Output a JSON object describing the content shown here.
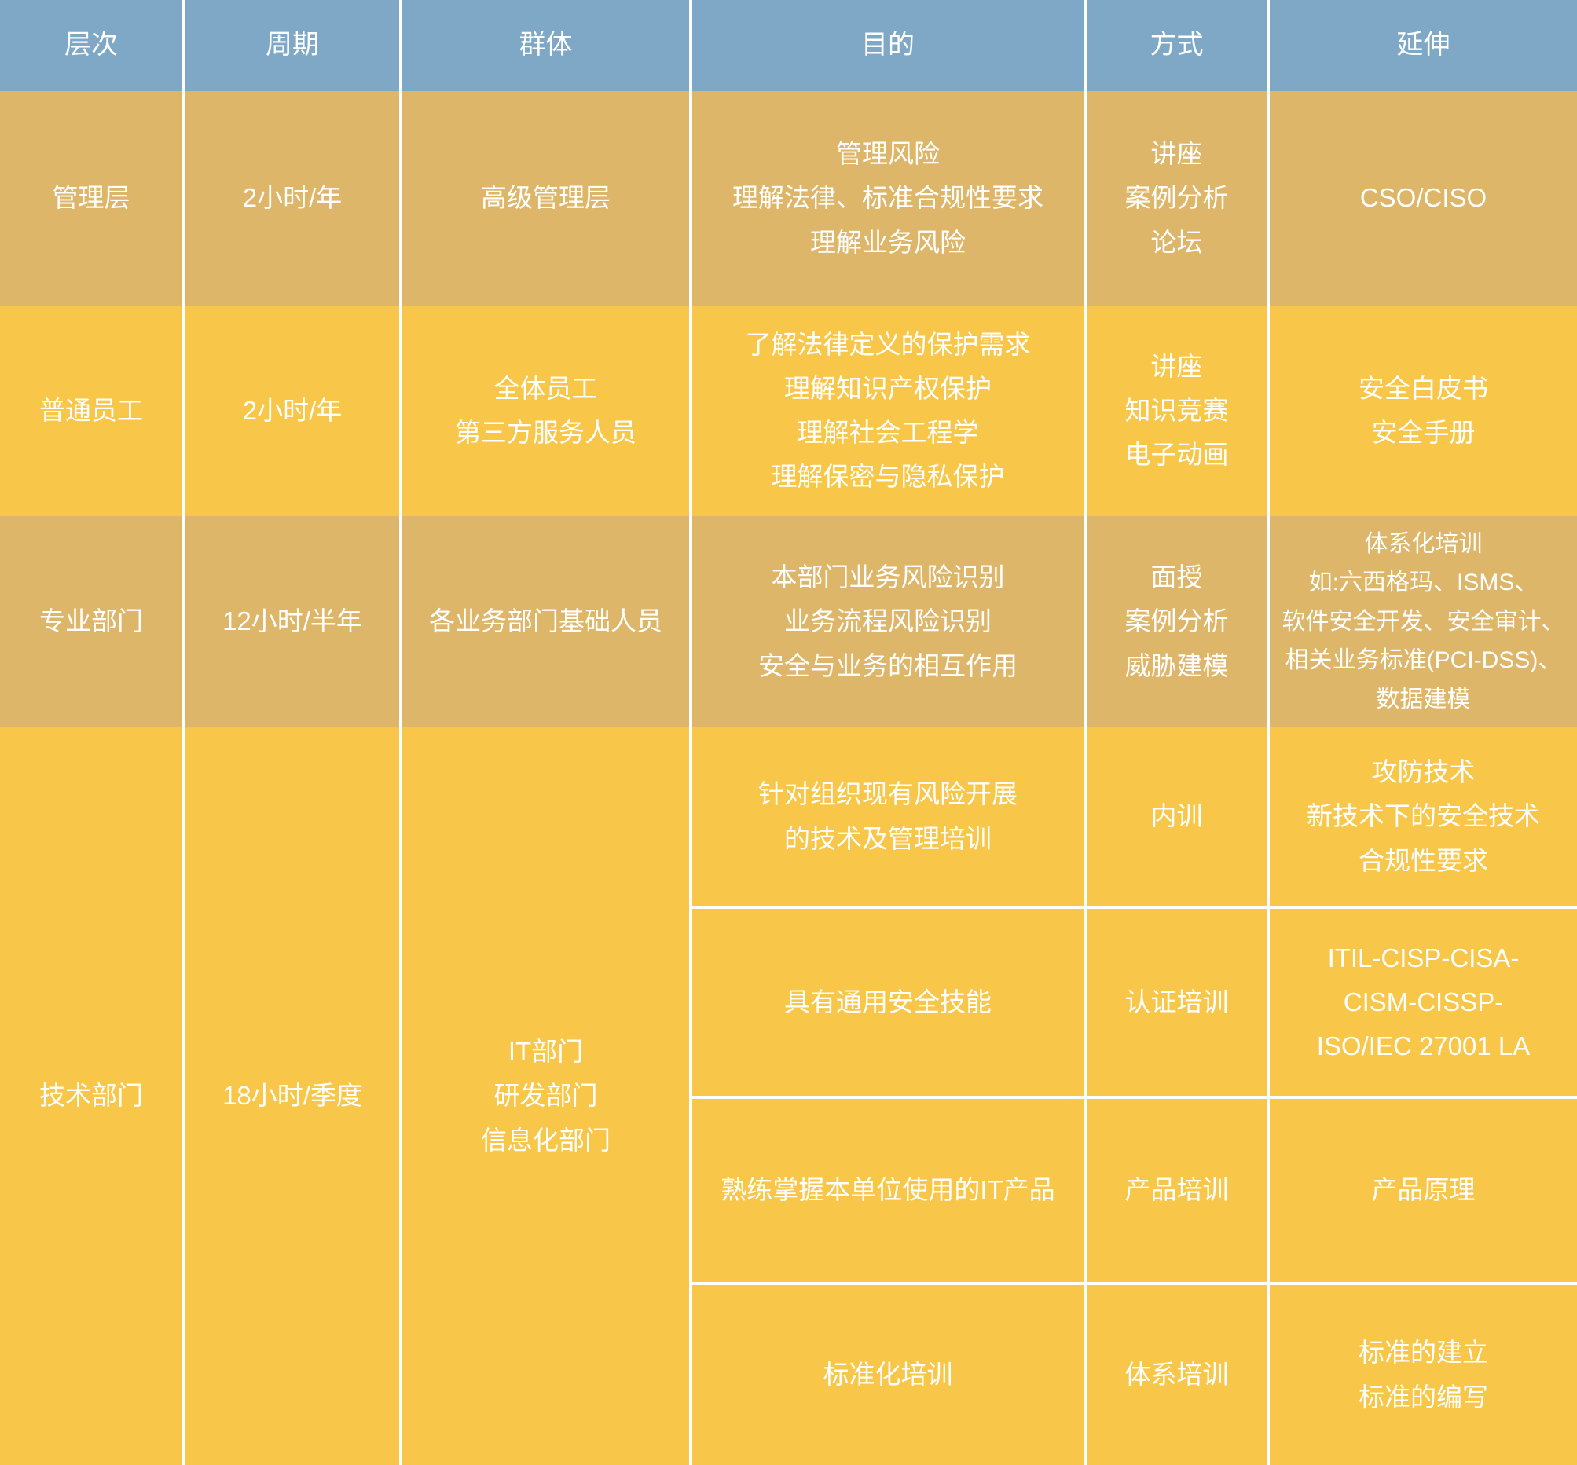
{
  "colors": {
    "header_bg": "#7fa8c6",
    "row_dark_bg": "#deb669",
    "row_bright_bg": "#f8c74a",
    "grid_line": "#ffffff",
    "text": "#ffffff"
  },
  "header": {
    "columns": [
      "层次",
      "周期",
      "群体",
      "目的",
      "方式",
      "延伸"
    ]
  },
  "rows": [
    {
      "name": "management",
      "level": "管理层",
      "period": "2小时/年",
      "group": [
        "高级管理层"
      ],
      "purpose": [
        "管理风险",
        "理解法律、标准合规性要求",
        "理解业务风险"
      ],
      "method": [
        "讲座",
        "案例分析",
        "论坛"
      ],
      "extension": [
        "CSO/CISO"
      ]
    },
    {
      "name": "general-staff",
      "level": "普通员工",
      "period": "2小时/年",
      "group": [
        "全体员工",
        "第三方服务人员"
      ],
      "purpose": [
        "了解法律定义的保护需求",
        "理解知识产权保护",
        "理解社会工程学",
        "理解保密与隐私保护"
      ],
      "method": [
        "讲座",
        "知识竞赛",
        "电子动画"
      ],
      "extension": [
        "安全白皮书",
        "安全手册"
      ]
    },
    {
      "name": "professional-dept",
      "level": "专业部门",
      "period": "12小时/半年",
      "group": [
        "各业务部门基础人员"
      ],
      "purpose": [
        "本部门业务风险识别",
        "业务流程风险识别",
        "安全与业务的相互作用"
      ],
      "method": [
        "面授",
        "案例分析",
        "威胁建模"
      ],
      "extension": [
        "体系化培训",
        "如:六西格玛、ISMS、",
        "软件安全开发、安全审计、",
        "相关业务标准(PCI-DSS)、",
        "数据建模"
      ]
    },
    {
      "name": "technical-dept",
      "level": "技术部门",
      "period": "18小时/季度",
      "group": [
        "IT部门",
        "研发部门",
        "信息化部门"
      ],
      "subrows": [
        {
          "name": "internal-training",
          "purpose": [
            "针对组织现有风险开展",
            "的技术及管理培训"
          ],
          "method": [
            "内训"
          ],
          "extension": [
            "攻防技术",
            "新技术下的安全技术",
            "合规性要求"
          ]
        },
        {
          "name": "certification-training",
          "purpose": [
            "具有通用安全技能"
          ],
          "method": [
            "认证培训"
          ],
          "extension": [
            "ITIL-CISP-CISA-",
            "CISM-CISSP-",
            "ISO/IEC 27001 LA"
          ]
        },
        {
          "name": "product-training",
          "purpose": [
            "熟练掌握本单位使用的IT产品"
          ],
          "method": [
            "产品培训"
          ],
          "extension": [
            "产品原理"
          ]
        },
        {
          "name": "system-training",
          "purpose": [
            "标准化培训"
          ],
          "method": [
            "体系培训"
          ],
          "extension": [
            "标准的建立",
            "标准的编写"
          ]
        }
      ]
    }
  ]
}
